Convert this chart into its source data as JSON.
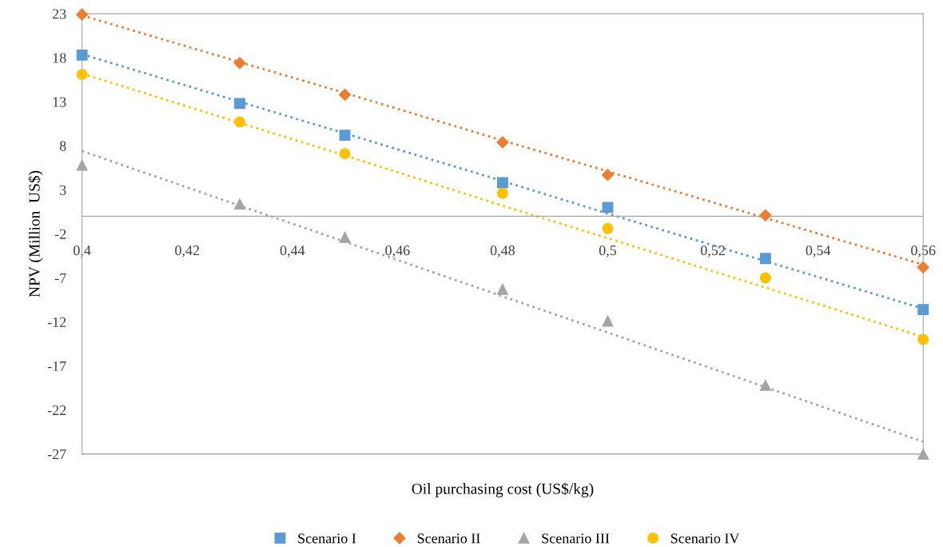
{
  "chart_data": {
    "type": "scatter",
    "xlabel": "Oil purchasing cost (US$/kg)",
    "ylabel": "NPV (Million  US$)",
    "x": [
      0.4,
      0.43,
      0.45,
      0.48,
      0.5,
      0.53,
      0.56
    ],
    "xlim": [
      0.4,
      0.56
    ],
    "xticks": [
      {
        "value": 0.4,
        "label": "0,4"
      },
      {
        "value": 0.42,
        "label": "0,42"
      },
      {
        "value": 0.44,
        "label": "0,44"
      },
      {
        "value": 0.46,
        "label": "0,46"
      },
      {
        "value": 0.48,
        "label": "0,48"
      },
      {
        "value": 0.5,
        "label": "0,5"
      },
      {
        "value": 0.52,
        "label": "0,52"
      },
      {
        "value": 0.54,
        "label": "0,54"
      },
      {
        "value": 0.56,
        "label": "0,56"
      }
    ],
    "ylim": [
      -27,
      23
    ],
    "yticks": [
      -27,
      -22,
      -17,
      -12,
      -7,
      -2,
      3,
      8,
      13,
      18,
      23
    ],
    "grid": false,
    "legend": "bottom",
    "series": [
      {
        "name": "Scenario I",
        "color": "#5b9bd5",
        "marker": "square",
        "values": [
          18.3,
          12.8,
          9.2,
          3.8,
          1.0,
          -4.8,
          -10.6
        ]
      },
      {
        "name": "Scenario II",
        "color": "#ed7d31",
        "marker": "diamond",
        "values": [
          22.9,
          17.4,
          13.8,
          8.4,
          4.7,
          0.1,
          -5.8
        ]
      },
      {
        "name": "Scenario III",
        "color": "#a5a5a5",
        "marker": "triangle",
        "values": [
          5.8,
          1.4,
          -2.4,
          -8.3,
          -11.9,
          -19.2,
          -27
        ]
      },
      {
        "name": "Scenario IV",
        "color": "#ffc000",
        "marker": "circle",
        "values": [
          16.1,
          10.7,
          7.1,
          2.6,
          -1.4,
          -7.0,
          -14.0
        ]
      },
      {
        "type": "line",
        "color": "#5b9bd5",
        "line_style": "dotted",
        "marker": "none",
        "values": [
          18.4,
          13.0,
          9.4,
          4.0,
          0.3,
          -5.1,
          -10.5
        ]
      },
      {
        "type": "line",
        "color": "#ed7d31",
        "line_style": "dotted",
        "marker": "none",
        "values": [
          22.8,
          17.5,
          14.0,
          8.6,
          5.1,
          -0.2,
          -5.5
        ]
      },
      {
        "type": "line",
        "color": "#a5a5a5",
        "line_style": "dotted",
        "marker": "none",
        "values": [
          7.4,
          1.2,
          -2.9,
          -9.1,
          -13.2,
          -19.4,
          -25.6
        ]
      },
      {
        "type": "line",
        "color": "#ffc000",
        "line_style": "dotted",
        "marker": "none",
        "values": [
          16.2,
          10.6,
          6.9,
          1.2,
          -2.5,
          -8.1,
          -13.7
        ]
      }
    ]
  }
}
